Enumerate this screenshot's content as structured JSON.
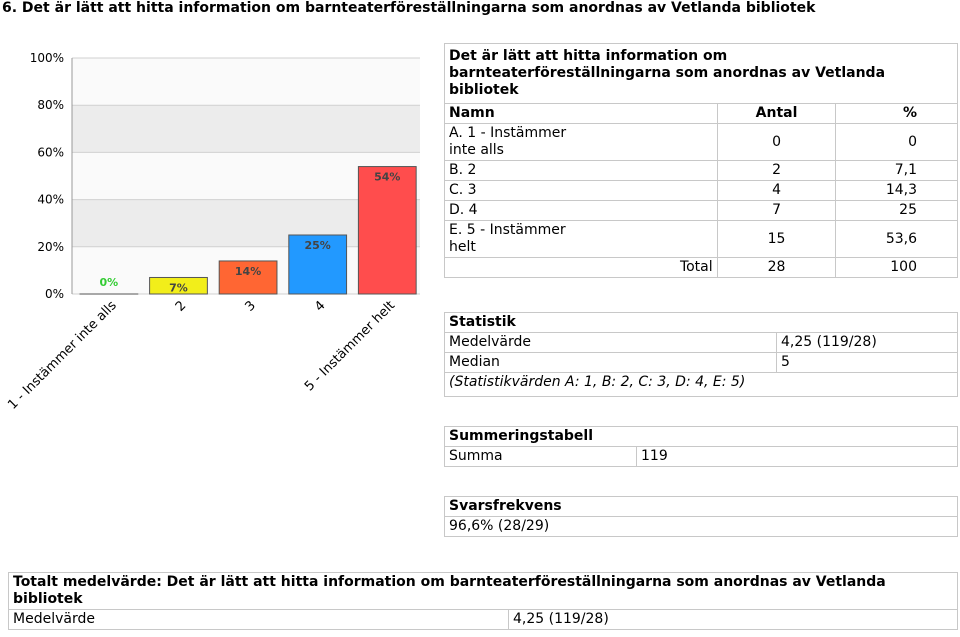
{
  "header": {
    "title": "6. Det är lätt att hitta information om barnteaterföreställningarna som anordnas av Vetlanda bibliotek"
  },
  "chart_data": {
    "type": "bar",
    "categories": [
      "1 - Instämmer inte alls",
      "2",
      "3",
      "4",
      "5 - Instämmer helt"
    ],
    "values": [
      0,
      7,
      14,
      25,
      54
    ],
    "value_labels": [
      "0%",
      "7%",
      "14%",
      "25%",
      "54%"
    ],
    "colors": [
      "#33cc33",
      "#f2ee1a",
      "#ff6633",
      "#2299ff",
      "#ff4d4d"
    ],
    "ylim": [
      0,
      100
    ],
    "yticks": [
      {
        "value": 0,
        "label": "0%"
      },
      {
        "value": 20,
        "label": "20%"
      },
      {
        "value": 40,
        "label": "40%"
      },
      {
        "value": 60,
        "label": "60%"
      },
      {
        "value": 80,
        "label": "80%"
      },
      {
        "value": 100,
        "label": "100%"
      }
    ],
    "grid": true
  },
  "table": {
    "title": "Det är lätt att hitta information om barnteaterföreställningarna som anordnas av Vetlanda bibliotek",
    "headers": [
      "Namn",
      "Antal",
      "%"
    ],
    "rows": [
      [
        "A. 1 - Instämmer inte alls",
        0,
        0
      ],
      [
        "B. 2",
        2,
        "7,1"
      ],
      [
        "C. 3",
        4,
        "14,3"
      ],
      [
        "D. 4",
        7,
        25
      ],
      [
        "E. 5 - Instämmer helt",
        15,
        "53,6"
      ]
    ],
    "total": [
      "Total",
      28,
      100
    ]
  },
  "statistics": {
    "title": "Statistik",
    "rows": [
      [
        "Medelvärde",
        "4,25 (119/28)"
      ],
      [
        "Median",
        5
      ]
    ],
    "note": "(Statistikvärden A: 1, B: 2, C: 3, D: 4, E: 5)"
  },
  "summary": {
    "title": "Summeringstabell",
    "rows": [
      [
        "Summa",
        119
      ]
    ]
  },
  "response_rate": {
    "title": "Svarsfrekvens",
    "value": "96,6% (28/29)"
  },
  "overall": {
    "title": "Totalt medelvärde: Det är lätt att hitta information om barnteaterföreställningarna som anordnas av Vetlanda bibliotek",
    "rows": [
      [
        "Medelvärde",
        "4,25 (119/28)"
      ]
    ]
  }
}
